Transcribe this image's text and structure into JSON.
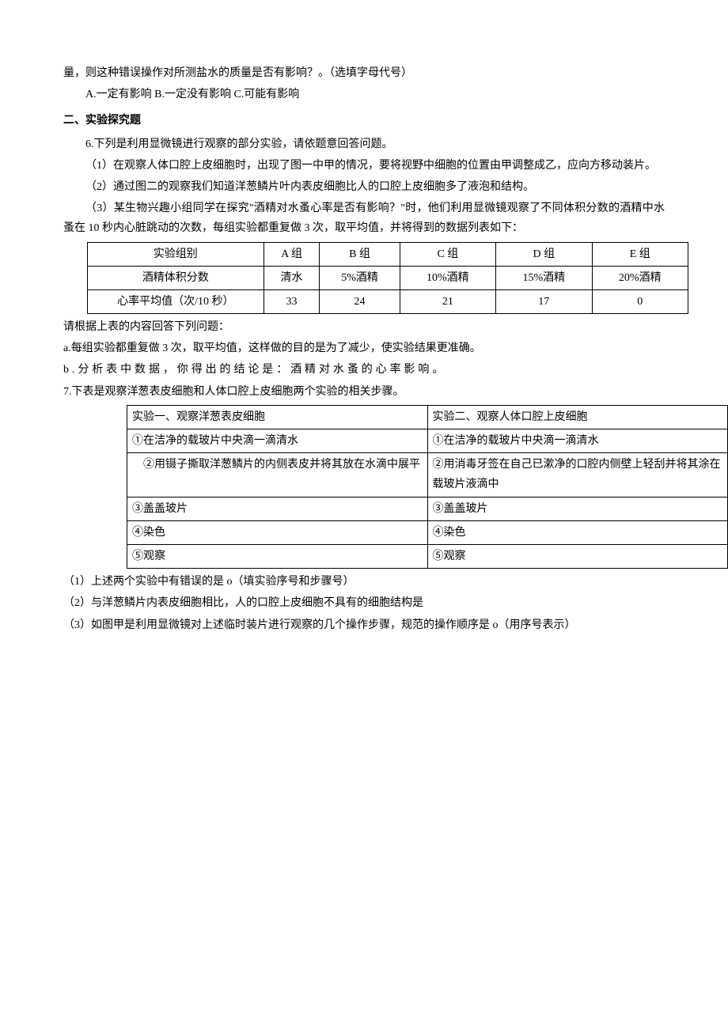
{
  "intro": {
    "line1": "量，则这种错误操作对所测盐水的质量是否有影响？。（选填字母代号）",
    "options": "A.一定有影响 B.一定没有影响 C.可能有影响"
  },
  "section2": {
    "header": "二、实验探究题",
    "q6": {
      "prompt": "6.下列是利用显微镜进行观察的部分实验，请依题意回答问题。",
      "p1": "（1）在观察人体口腔上皮细胞时，出现了图一中甲的情况，要将视野中细胞的位置由甲调整成乙，应向方移动装片。",
      "p2": "（2）通过图二的观察我们知道洋葱鳞片叶内表皮细胞比人的口腔上皮细胞多了液泡和结构。",
      "p3": "（3）某生物兴趣小组同学在探究\"酒精对水蚤心率是否有影响？\"时，他们利用显微镜观察了不同体积分数的酒精中水蚤在 10 秒内心脏跳动的次数，每组实验都重复做 3 次，取平均值，并将得到的数据列表如下：",
      "table": {
        "columns": [
          "实验组别",
          "A 组",
          "B 组",
          "C 组",
          "D 组",
          "E 组"
        ],
        "rows": [
          [
            "酒精体积分数",
            "清水",
            "5%酒精",
            "10%酒精",
            "15%酒精",
            "20%酒精"
          ],
          [
            "心率平均值（次/10 秒）",
            "33",
            "24",
            "21",
            "17",
            "0"
          ]
        ],
        "col_widths": [
          "220",
          "70",
          "100",
          "120",
          "120",
          "120"
        ],
        "border_color": "#000000"
      },
      "after_table": "请根据上表的内容回答下列问题：",
      "qa": "a.每组实验都重复做 3 次，取平均值，这样做的目的是为了减少，使实验结果更准确。",
      "qb": "b.分析表中数据，你得出的结论是：酒精对水蚤的心率影响。"
    },
    "q7": {
      "prompt": "7.下表是观察洋葱表皮细胞和人体口腔上皮细胞两个实验的相关步骤。",
      "table": {
        "col_widths": [
          "380",
          "380"
        ],
        "border_color": "#000000",
        "rows": [
          [
            "实验一、观察洋葱表皮细胞",
            "实验二、观察人体口腔上皮细胞"
          ],
          [
            "①在洁净的载玻片中央滴一滴清水",
            "①在洁净的载玻片中央滴一滴清水"
          ],
          [
            "　②用镊子撕取洋葱鳞片的内侧表皮并将其放在水滴中展平",
            "②用消毒牙签在自己已漱净的口腔内侧壁上轻刮并将其涂在载玻片液滴中"
          ],
          [
            "③盖盖玻片",
            "③盖盖玻片"
          ],
          [
            "④染色",
            "④染色"
          ],
          [
            "⑤观察",
            "⑤观察"
          ]
        ]
      },
      "p1": "（1）上述两个实验中有错误的是 o（填实验序号和步骤号）",
      "p2": "（2）与洋葱鳞片内表皮细胞相比，人的口腔上皮细胞不具有的细胞结构是",
      "p3": "（3）如图甲是利用显微镜对上述临时装片进行观察的几个操作步骤，规范的操作顺序是 o（用序号表示）"
    }
  }
}
